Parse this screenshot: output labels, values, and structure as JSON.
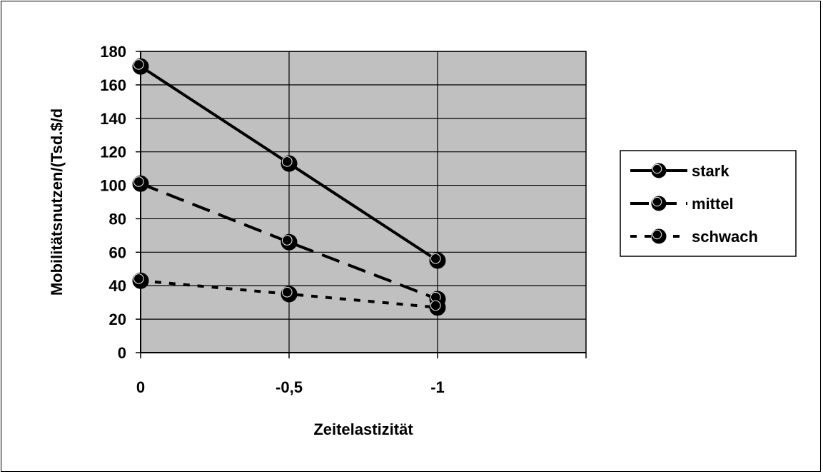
{
  "chart_data": {
    "type": "line",
    "title": "",
    "xlabel": "Zeitelastizität",
    "ylabel": "Mobilitätsnutzen/(Tsd.$/d",
    "categories": [
      "0",
      "-0,5",
      "-1"
    ],
    "xlim": [
      0,
      -1.5
    ],
    "ylim": [
      0,
      180
    ],
    "yticks": [
      "0",
      "20",
      "40",
      "60",
      "80",
      "100",
      "120",
      "140",
      "160",
      "180"
    ],
    "grid": true,
    "legend_position": "right",
    "plot_background": "#c0c0c0",
    "series": [
      {
        "name": "stark",
        "x": [
          0,
          -0.5,
          -1
        ],
        "values": [
          171,
          113,
          55
        ],
        "style": "solid"
      },
      {
        "name": "mittel",
        "x": [
          0,
          -0.5,
          -1
        ],
        "values": [
          101,
          66,
          32
        ],
        "style": "dashed"
      },
      {
        "name": "schwach",
        "x": [
          0,
          -0.5,
          -1
        ],
        "values": [
          43,
          35,
          27
        ],
        "style": "dotted"
      }
    ]
  }
}
